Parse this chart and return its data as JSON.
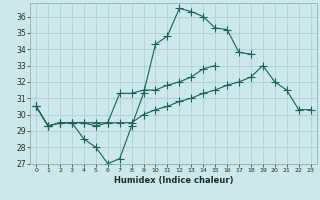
{
  "title": "",
  "xlabel": "Humidex (Indice chaleur)",
  "bg_color": "#cce8e8",
  "grid_color": "#aacccc",
  "line_color": "#1a6060",
  "xlim": [
    -0.5,
    23.5
  ],
  "ylim": [
    27,
    36.8
  ],
  "yticks": [
    27,
    28,
    29,
    30,
    31,
    32,
    33,
    34,
    35,
    36
  ],
  "xticks": [
    0,
    1,
    2,
    3,
    4,
    5,
    6,
    7,
    8,
    9,
    10,
    11,
    12,
    13,
    14,
    15,
    16,
    17,
    18,
    19,
    20,
    21,
    22,
    23
  ],
  "line1": [
    30.5,
    29.3,
    29.5,
    29.5,
    28.5,
    28.0,
    27.0,
    27.3,
    29.3,
    31.3,
    34.3,
    34.8,
    36.5,
    36.3,
    36.0,
    35.3,
    35.2,
    33.8,
    33.7,
    null,
    null,
    null,
    null,
    null
  ],
  "line2": [
    30.5,
    29.3,
    29.5,
    29.5,
    29.5,
    29.3,
    29.5,
    31.3,
    31.3,
    31.5,
    31.5,
    31.8,
    32.0,
    32.3,
    32.8,
    33.0,
    null,
    null,
    null,
    null,
    null,
    null,
    null,
    null
  ],
  "line3": [
    30.5,
    29.3,
    29.5,
    29.5,
    29.5,
    29.5,
    29.5,
    29.5,
    29.5,
    30.0,
    30.3,
    30.5,
    30.8,
    31.0,
    31.3,
    31.5,
    31.8,
    32.0,
    32.3,
    33.0,
    32.0,
    31.5,
    30.3,
    30.3
  ],
  "tick_fontsize": 5.5,
  "xlabel_fontsize": 6,
  "linewidth": 0.8,
  "markersize": 2.2
}
